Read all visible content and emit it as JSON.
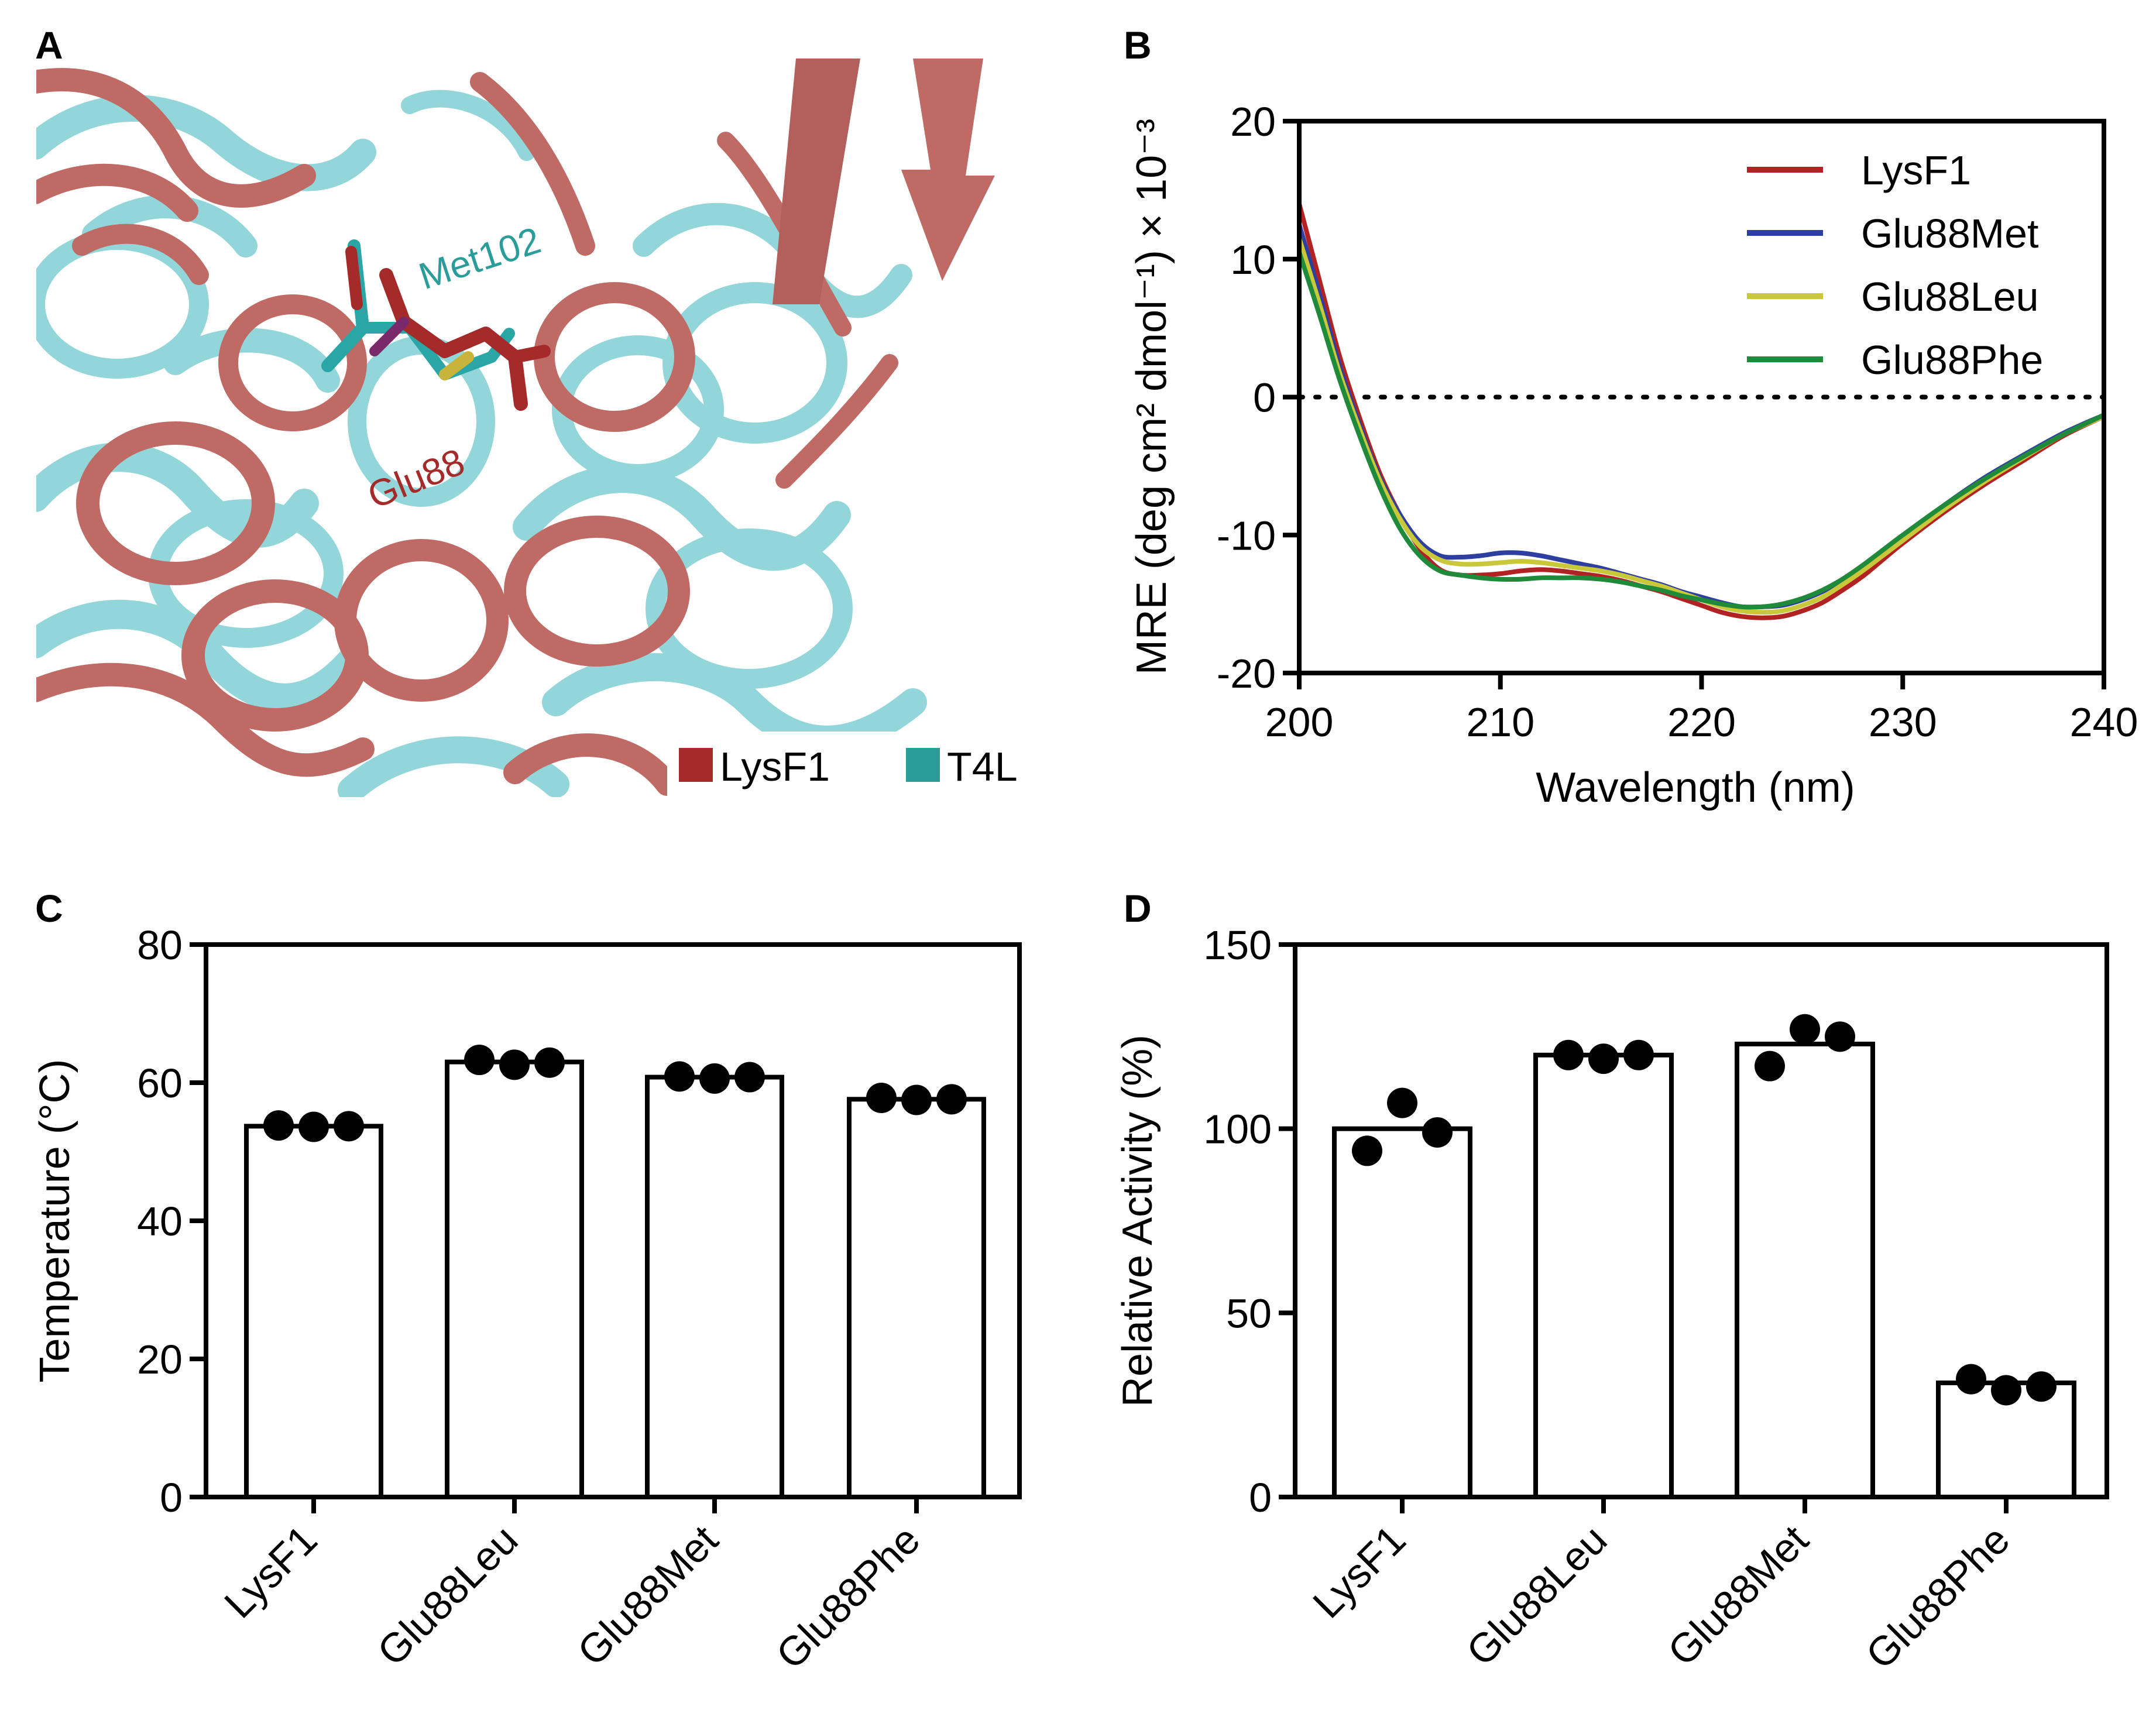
{
  "panels": {
    "A": {
      "label": "A",
      "annotations": {
        "met": "Met102",
        "glu": "Glu88"
      },
      "legend": [
        {
          "name": "LysF1",
          "color": "#a52a2a"
        },
        {
          "name": "T4L",
          "color": "#2a9d9a"
        }
      ],
      "colors": {
        "lysf1_ribbon": "#c06a66",
        "t4l_ribbon": "#92d6da"
      }
    },
    "B": {
      "label": "B"
    },
    "C": {
      "label": "C"
    },
    "D": {
      "label": "D"
    }
  },
  "chart_data": [
    {
      "id": "B",
      "type": "line",
      "xlabel": "Wavelength (nm)",
      "ylabel": "MRE (deg cm² dmol⁻¹) × 10⁻³",
      "xlim": [
        200,
        240
      ],
      "ylim": [
        -20,
        20
      ],
      "xticks": [
        200,
        210,
        220,
        230,
        240
      ],
      "yticks": [
        20,
        10,
        0,
        -10,
        -20
      ],
      "zero_line": true,
      "legend_position": "top-right",
      "x": [
        200,
        201,
        202,
        203,
        204,
        205,
        206,
        207,
        208,
        209,
        210,
        211,
        212,
        213,
        214,
        215,
        216,
        217,
        218,
        219,
        220,
        221,
        222,
        223,
        224,
        225,
        226,
        227,
        228,
        229,
        230,
        232,
        234,
        236,
        238,
        240
      ],
      "series": [
        {
          "name": "LysF1",
          "color": "#b22222",
          "values": [
            14,
            8.5,
            3,
            -1.5,
            -5.5,
            -8.5,
            -11,
            -12.5,
            -12.9,
            -12.9,
            -12.8,
            -12.6,
            -12.5,
            -12.6,
            -12.8,
            -13,
            -13.3,
            -13.7,
            -14.1,
            -14.6,
            -15.1,
            -15.6,
            -15.9,
            -16.0,
            -15.9,
            -15.5,
            -14.9,
            -14,
            -13,
            -11.8,
            -10.6,
            -8.4,
            -6.4,
            -4.6,
            -2.8,
            -1.4
          ]
        },
        {
          "name": "Glu88Met",
          "color": "#2e3fa0",
          "values": [
            12.5,
            7.5,
            2.3,
            -2,
            -5.8,
            -8.5,
            -10.5,
            -11.5,
            -11.6,
            -11.5,
            -11.3,
            -11.3,
            -11.5,
            -11.8,
            -12.1,
            -12.4,
            -12.8,
            -13.2,
            -13.6,
            -14.1,
            -14.5,
            -14.9,
            -15.2,
            -15.2,
            -15.1,
            -14.7,
            -14.1,
            -13.3,
            -12.3,
            -11.2,
            -10.1,
            -7.9,
            -5.9,
            -4.2,
            -2.6,
            -1.3
          ]
        },
        {
          "name": "Glu88Leu",
          "color": "#c8c83a",
          "values": [
            11.5,
            6.8,
            1.8,
            -2.3,
            -6,
            -8.8,
            -10.8,
            -11.8,
            -12.1,
            -12.1,
            -12,
            -11.9,
            -12,
            -12.2,
            -12.4,
            -12.6,
            -12.9,
            -13.3,
            -13.7,
            -14.2,
            -14.7,
            -15.2,
            -15.5,
            -15.6,
            -15.5,
            -15.1,
            -14.5,
            -13.6,
            -12.6,
            -11.5,
            -10.4,
            -8.2,
            -6.2,
            -4.4,
            -2.7,
            -1.4
          ]
        },
        {
          "name": "Glu88Phe",
          "color": "#1f8a3a",
          "values": [
            10.5,
            6,
            1.3,
            -2.8,
            -6.5,
            -9.5,
            -11.5,
            -12.6,
            -12.9,
            -13.1,
            -13.2,
            -13.2,
            -13.1,
            -13.1,
            -13.1,
            -13.2,
            -13.4,
            -13.7,
            -14,
            -14.4,
            -14.7,
            -15,
            -15.2,
            -15.2,
            -15,
            -14.6,
            -14,
            -13.2,
            -12.2,
            -11.1,
            -10,
            -7.9,
            -6,
            -4.3,
            -2.7,
            -1.3
          ]
        }
      ]
    },
    {
      "id": "C",
      "type": "bar",
      "ylabel": "Temperature (°C)",
      "ylim": [
        0,
        80
      ],
      "yticks": [
        80,
        60,
        40,
        20,
        0
      ],
      "categories": [
        "LysF1",
        "Glu88Leu",
        "Glu88Met",
        "Glu88Phe"
      ],
      "values": [
        53.7,
        63.0,
        60.8,
        57.6
      ],
      "points": [
        [
          53.8,
          53.6,
          53.7
        ],
        [
          63.3,
          62.6,
          62.9
        ],
        [
          60.9,
          60.6,
          60.8
        ],
        [
          57.8,
          57.5,
          57.6
        ]
      ]
    },
    {
      "id": "D",
      "type": "bar",
      "ylabel": "Relative  Activity  (%)",
      "ylim": [
        0,
        150
      ],
      "yticks": [
        150,
        100,
        50,
        0
      ],
      "categories": [
        "LysF1",
        "Glu88Leu",
        "Glu88Met",
        "Glu88Phe"
      ],
      "values": [
        100,
        120,
        123,
        31
      ],
      "points": [
        [
          94,
          107,
          99
        ],
        [
          120,
          119,
          120
        ],
        [
          117,
          127,
          125
        ],
        [
          32,
          29,
          30
        ]
      ]
    }
  ]
}
